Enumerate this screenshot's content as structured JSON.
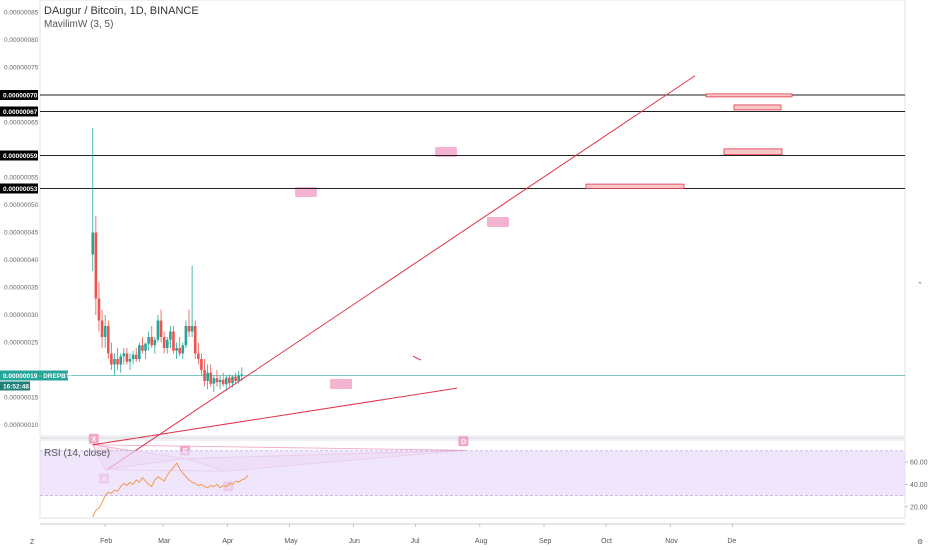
{
  "header": {
    "title": "DAugur / Bitcoin, 1D, BINANCE",
    "indicator": "MavilimW (3, 5)",
    "rsi_label": "RSI (14, close)"
  },
  "colors": {
    "up": "#26a69a",
    "down": "#ef5350",
    "pattern_fill": "#f6c6dc",
    "pattern_label": "#f2a7c9",
    "rsi_band": "#e8dcfb",
    "rsi_line": "#f5923e",
    "trendline": "#e3344a",
    "hline": "#222222",
    "last_price": "#26a69a"
  },
  "chart_data": [
    {
      "type": "line",
      "title": "DAugur / Bitcoin, 1D, BINANCE",
      "y_ticks": [
        "0.00000085",
        "0.00000080",
        "0.00000075",
        "0.00000065",
        "0.00000055",
        "0.00000050",
        "0.00000045",
        "0.00000040",
        "0.00000035",
        "0.00000030",
        "0.00000025",
        "0.00000015",
        "0.00000010"
      ],
      "x_ticks": [
        "Feb",
        "Mar",
        "Apr",
        "May",
        "Jun",
        "Jul",
        "Aug",
        "Sep",
        "Oct",
        "Nov",
        "De"
      ],
      "ylim": [
        8e-08,
        8.7e-08
      ],
      "price_boxes": [
        "0.00000070",
        "0.00000067",
        "0.00000059",
        "0.00000053"
      ],
      "last_price_box": "0.00000019 · DREPBTC",
      "countdown": "16:52:48",
      "pattern_points": [
        {
          "label": "X",
          "date": "2019-01-26",
          "price": 6.4e-08
        },
        {
          "label": "A",
          "date": "2019-02-01",
          "price": 1.9e-08
        },
        {
          "label": "B",
          "date": "2019-03-12",
          "price": 3.9e-08
        },
        {
          "label": "C",
          "date": "2019-03-31",
          "price": 1.6e-08
        },
        {
          "label": "D",
          "date": "2019-07-25",
          "price": 5.4e-08
        }
      ],
      "candles": [
        {
          "o": 41,
          "h": 64,
          "l": 38,
          "c": 45
        },
        {
          "o": 45,
          "h": 48,
          "l": 30,
          "c": 33
        },
        {
          "o": 33,
          "h": 36,
          "l": 27,
          "c": 29
        },
        {
          "o": 29,
          "h": 31,
          "l": 24,
          "c": 26
        },
        {
          "o": 26,
          "h": 30,
          "l": 24,
          "c": 28
        },
        {
          "o": 28,
          "h": 29,
          "l": 22,
          "c": 23
        },
        {
          "o": 23,
          "h": 25,
          "l": 20,
          "c": 21
        },
        {
          "o": 21,
          "h": 23,
          "l": 19,
          "c": 22
        },
        {
          "o": 22,
          "h": 24,
          "l": 20,
          "c": 21
        },
        {
          "o": 21,
          "h": 23,
          "l": 19.5,
          "c": 22.5
        },
        {
          "o": 22.5,
          "h": 24,
          "l": 21,
          "c": 23
        },
        {
          "o": 23,
          "h": 24,
          "l": 21,
          "c": 21.5
        },
        {
          "o": 21.5,
          "h": 23,
          "l": 20,
          "c": 22
        },
        {
          "o": 22,
          "h": 23.5,
          "l": 21,
          "c": 22.8
        },
        {
          "o": 22.8,
          "h": 24,
          "l": 21.5,
          "c": 22
        },
        {
          "o": 22,
          "h": 25,
          "l": 21.5,
          "c": 24.5
        },
        {
          "o": 24.5,
          "h": 26,
          "l": 23,
          "c": 23.5
        },
        {
          "o": 23.5,
          "h": 25,
          "l": 22,
          "c": 24.8
        },
        {
          "o": 24.8,
          "h": 27,
          "l": 23.5,
          "c": 26
        },
        {
          "o": 26,
          "h": 28,
          "l": 24,
          "c": 24.5
        },
        {
          "o": 24.5,
          "h": 26,
          "l": 23,
          "c": 25.5
        },
        {
          "o": 25.5,
          "h": 30,
          "l": 25,
          "c": 29
        },
        {
          "o": 29,
          "h": 31,
          "l": 25,
          "c": 26
        },
        {
          "o": 26,
          "h": 27,
          "l": 23,
          "c": 24
        },
        {
          "o": 24,
          "h": 26,
          "l": 23,
          "c": 25.5
        },
        {
          "o": 25.5,
          "h": 28,
          "l": 24,
          "c": 27
        },
        {
          "o": 27,
          "h": 28,
          "l": 23,
          "c": 23.5
        },
        {
          "o": 23.5,
          "h": 25,
          "l": 22,
          "c": 24
        },
        {
          "o": 24,
          "h": 26,
          "l": 22.5,
          "c": 23
        },
        {
          "o": 23,
          "h": 25,
          "l": 22,
          "c": 24.5
        },
        {
          "o": 24.5,
          "h": 29,
          "l": 24,
          "c": 28
        },
        {
          "o": 28,
          "h": 31,
          "l": 26,
          "c": 27
        },
        {
          "o": 27,
          "h": 39,
          "l": 26,
          "c": 28
        },
        {
          "o": 28,
          "h": 29,
          "l": 22,
          "c": 23
        },
        {
          "o": 23,
          "h": 25,
          "l": 21,
          "c": 22
        },
        {
          "o": 22,
          "h": 23,
          "l": 19,
          "c": 20
        },
        {
          "o": 20,
          "h": 22,
          "l": 17,
          "c": 18
        },
        {
          "o": 18,
          "h": 21,
          "l": 16.5,
          "c": 19.5
        },
        {
          "o": 19.5,
          "h": 21,
          "l": 17,
          "c": 17.5
        },
        {
          "o": 17.5,
          "h": 19,
          "l": 16,
          "c": 18.5
        },
        {
          "o": 18.5,
          "h": 20,
          "l": 17,
          "c": 17.8
        },
        {
          "o": 17.8,
          "h": 19,
          "l": 16.5,
          "c": 18.2
        },
        {
          "o": 18.2,
          "h": 19.5,
          "l": 17,
          "c": 17.4
        },
        {
          "o": 17.4,
          "h": 19,
          "l": 16.2,
          "c": 18.6
        },
        {
          "o": 18.6,
          "h": 19.2,
          "l": 17,
          "c": 17.6
        },
        {
          "o": 17.6,
          "h": 19,
          "l": 16.8,
          "c": 18.8
        },
        {
          "o": 18.8,
          "h": 19.5,
          "l": 17.5,
          "c": 18
        },
        {
          "o": 18,
          "h": 19.8,
          "l": 17.5,
          "c": 19
        },
        {
          "o": 19,
          "h": 20.5,
          "l": 18,
          "c": 19.2
        }
      ]
    },
    {
      "type": "line",
      "title": "RSI (14, close)",
      "y_ticks": [
        "60.00",
        "40.00",
        "20.00"
      ],
      "band": [
        30,
        70
      ],
      "values": [
        11,
        17,
        19,
        24,
        30,
        33,
        32,
        35,
        34,
        38,
        41,
        39,
        42,
        40,
        44,
        42,
        46,
        43,
        40,
        38,
        44,
        47,
        45,
        43,
        48,
        52,
        55,
        59,
        54,
        50,
        47,
        44,
        42,
        41,
        39,
        40,
        38,
        37,
        39,
        38,
        40,
        37,
        39,
        38,
        41,
        40,
        43,
        42,
        44,
        45,
        48
      ]
    }
  ]
}
